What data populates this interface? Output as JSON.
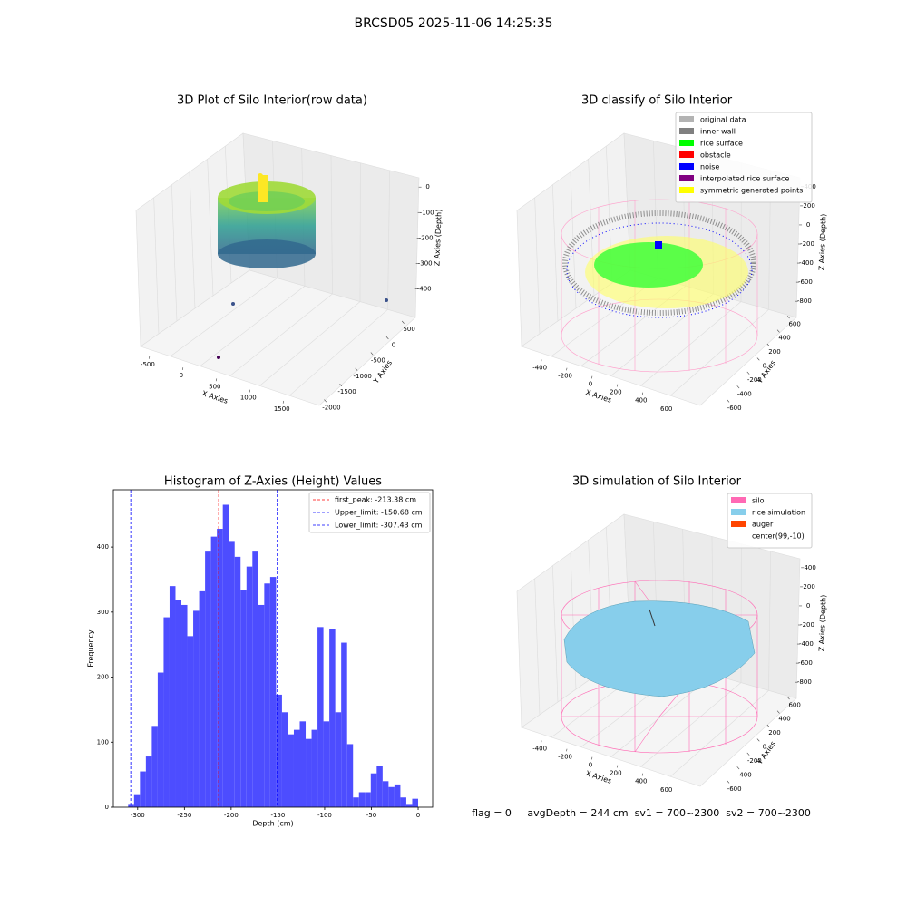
{
  "title": "BRCSD05 2025-11-06 14:25:35",
  "footer": "flag = 0     avgDepth = 244 cm  sv1 = 700~2300  sv2 = 700~2300",
  "chart_data": [
    {
      "type": "scatter3d",
      "title": "3D Plot of Silo Interior(row data)",
      "xlabel": "X Axies",
      "ylabel": "Y Axies",
      "zlabel": "Z Axies (Depth)",
      "xlim": [
        -620,
        1950
      ],
      "ylim": [
        700,
        -2100
      ],
      "zlim": [
        40,
        -470
      ],
      "xticks": [
        -500,
        0,
        500,
        1000,
        1500
      ],
      "yticks": [
        500,
        0,
        -500,
        -1000,
        -1500,
        -2000
      ],
      "zticks": [
        0,
        -100,
        -200,
        -300,
        -400
      ]
    },
    {
      "type": "scatter3d",
      "title": "3D classify of Silo Interior",
      "xlabel": "X Axies",
      "ylabel": "Y Axies",
      "zlabel": "Z Axies (Depth)",
      "xlim": [
        -480,
        760
      ],
      "ylim": [
        760,
        -720
      ],
      "zlim": [
        560,
        -960
      ],
      "xticks": [
        -400,
        -200,
        0,
        200,
        400,
        600
      ],
      "yticks": [
        600,
        400,
        200,
        0,
        -200,
        -400,
        -600
      ],
      "zticks": [
        400,
        200,
        0,
        -200,
        -400,
        -600,
        -800
      ],
      "legend": [
        {
          "name": "original data",
          "color": "#b3b3b3"
        },
        {
          "name": "inner wall",
          "color": "#808080"
        },
        {
          "name": "rice surface",
          "color": "#00ff00"
        },
        {
          "name": "obstacle",
          "color": "#ff0000"
        },
        {
          "name": "noise",
          "color": "#0000ff"
        },
        {
          "name": "interpolated rice surface",
          "color": "#800080"
        },
        {
          "name": "symmetric generated points",
          "color": "#ffff00"
        }
      ]
    },
    {
      "type": "histogram",
      "title": "Histogram of Z-Axies (Height) Values",
      "xlabel": "Depth (cm)",
      "ylabel": "Frequency",
      "color": "#4d4dff",
      "bins": [
        -310.2,
        -303.87,
        -297.54,
        -291.21,
        -284.88,
        -278.55,
        -272.22,
        -265.89,
        -259.56,
        -253.23,
        -246.9,
        -240.57,
        -234.24,
        -227.91,
        -221.58,
        -215.25,
        -208.92,
        -202.59,
        -196.26,
        -189.93,
        -183.6,
        -177.27,
        -170.94,
        -164.61,
        -158.28,
        -151.95,
        -145.62,
        -139.29,
        -132.96,
        -126.63,
        -120.3,
        -113.97,
        -107.64,
        -101.31,
        -94.98,
        -88.65,
        -82.32,
        -75.99,
        -69.66,
        -63.33,
        -57.0,
        -50.67,
        -44.34,
        -38.01,
        -31.68,
        -25.35,
        -19.02,
        -12.69,
        -6.36,
        -0.03
      ],
      "values": [
        5,
        20,
        55,
        78,
        125,
        207,
        292,
        340,
        318,
        311,
        263,
        302,
        332,
        393,
        416,
        428,
        465,
        408,
        385,
        334,
        370,
        393,
        311,
        344,
        354,
        173,
        146,
        112,
        119,
        132,
        105,
        119,
        277,
        132,
        274,
        146,
        253,
        97,
        15,
        23,
        23,
        52,
        63,
        40,
        31,
        35,
        15,
        5,
        13
      ],
      "xlim": [
        -326,
        15.5
      ],
      "ylim": [
        0,
        488
      ],
      "xticks": [
        -300,
        -250,
        -200,
        -150,
        -100,
        -50,
        0
      ],
      "yticks": [
        0,
        100,
        200,
        300,
        400
      ],
      "lines": [
        {
          "label": "first_peak: -213.38 cm",
          "value": -213.38,
          "color": "#ff0000"
        },
        {
          "label": "Upper_limit: -150.68 cm",
          "value": -150.68,
          "color": "#0000ff"
        },
        {
          "label": "Lower_limit: -307.43 cm",
          "value": -307.43,
          "color": "#0000ff"
        }
      ]
    },
    {
      "type": "scatter3d",
      "title": "3D simulation of Silo Interior",
      "xlabel": "X Axies",
      "ylabel": "Y Axies",
      "zlabel": "Z Axies (Depth)",
      "xlim": [
        -480,
        760
      ],
      "ylim": [
        760,
        -720
      ],
      "zlim": [
        560,
        -960
      ],
      "xticks": [
        -400,
        -200,
        0,
        200,
        400,
        600
      ],
      "yticks": [
        600,
        400,
        200,
        0,
        -200,
        -400,
        -600
      ],
      "zticks": [
        400,
        200,
        0,
        -200,
        -400,
        -600,
        -800
      ],
      "legend": [
        {
          "name": "silo",
          "color": "#ff69b4"
        },
        {
          "name": "rice simulation",
          "color": "#87ceeb"
        },
        {
          "name": "auger",
          "color": "#ff4500"
        },
        {
          "name": "center(99,-10)",
          "color": "#ffffff"
        }
      ]
    }
  ]
}
